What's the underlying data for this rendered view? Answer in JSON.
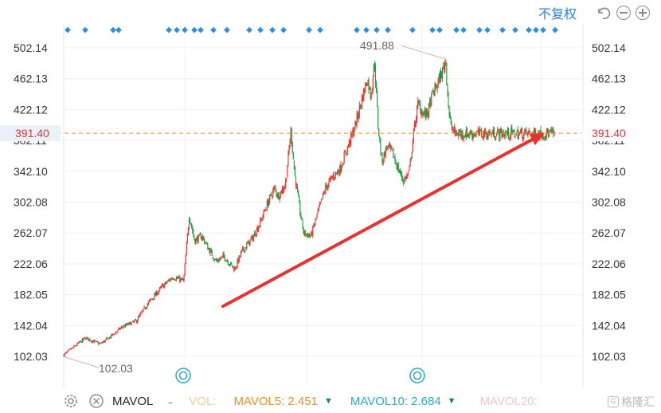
{
  "toolbar": {
    "adjust_label": "不复权",
    "undo_icon": "undo-icon",
    "zoom_out_icon": "zoom-out-icon",
    "zoom_in_icon": "zoom-in-icon"
  },
  "chart_data": {
    "type": "candlestick",
    "y_ticks": [
      "502.14",
      "462.13",
      "422.12",
      "382.11",
      "342.10",
      "302.08",
      "262.07",
      "222.06",
      "182.05",
      "142.04",
      "102.03"
    ],
    "ylim": [
      102.03,
      502.14
    ],
    "current_price": "391.40",
    "high_label": "491.88",
    "low_label": "102.03",
    "up_color": "#e8322e",
    "down_color": "#18a23a",
    "trend_arrow": {
      "from": [
        0.2,
        167
      ],
      "to": [
        0.96,
        392
      ],
      "color": "#e8322e"
    },
    "trajectory": [
      [
        0.0,
        104
      ],
      [
        0.03,
        115
      ],
      [
        0.06,
        126
      ],
      [
        0.1,
        118
      ],
      [
        0.13,
        128
      ],
      [
        0.16,
        140
      ],
      [
        0.2,
        148
      ],
      [
        0.23,
        170
      ],
      [
        0.27,
        192
      ],
      [
        0.3,
        205
      ],
      [
        0.33,
        200
      ],
      [
        0.345,
        285
      ],
      [
        0.36,
        252
      ],
      [
        0.38,
        258
      ],
      [
        0.4,
        240
      ],
      [
        0.42,
        225
      ],
      [
        0.44,
        232
      ],
      [
        0.47,
        215
      ],
      [
        0.49,
        238
      ],
      [
        0.52,
        256
      ],
      [
        0.54,
        275
      ],
      [
        0.56,
        300
      ],
      [
        0.58,
        320
      ],
      [
        0.59,
        310
      ],
      [
        0.61,
        325
      ],
      [
        0.625,
        395
      ],
      [
        0.635,
        340
      ],
      [
        0.65,
        290
      ],
      [
        0.66,
        262
      ],
      [
        0.68,
        258
      ],
      [
        0.7,
        290
      ],
      [
        0.72,
        320
      ],
      [
        0.74,
        335
      ],
      [
        0.76,
        345
      ],
      [
        0.78,
        372
      ],
      [
        0.8,
        398
      ],
      [
        0.82,
        435
      ],
      [
        0.835,
        462
      ],
      [
        0.845,
        440
      ],
      [
        0.855,
        485
      ],
      [
        0.865,
        400
      ],
      [
        0.875,
        355
      ],
      [
        0.89,
        375
      ],
      [
        0.905,
        365
      ],
      [
        0.92,
        345
      ],
      [
        0.935,
        330
      ],
      [
        0.95,
        340
      ],
      [
        0.965,
        400
      ],
      [
        0.975,
        430
      ],
      [
        0.985,
        420
      ],
      [
        0.995,
        415
      ],
      [
        1.0,
        418
      ]
    ],
    "trajectory2": [
      [
        0.0,
        418
      ],
      [
        0.03,
        440
      ],
      [
        0.06,
        450
      ],
      [
        0.09,
        462
      ],
      [
        0.11,
        470
      ],
      [
        0.13,
        480
      ],
      [
        0.14,
        488
      ],
      [
        0.15,
        455
      ],
      [
        0.165,
        420
      ],
      [
        0.18,
        400
      ],
      [
        0.2,
        395
      ],
      [
        0.215,
        391
      ]
    ]
  },
  "bottom": {
    "settings_icon": "settings-icon",
    "close_icon": "close-icon",
    "indicator_name": "MAVOL",
    "vol_label": "VOL:",
    "mavol5_label": "MAVOL5:",
    "mavol5_value": "2.451",
    "mavol10_label": "MAVOL10:",
    "mavol10_value": "2.684",
    "mavol20_label": "MAVOL20:",
    "watermark_text": "格隆汇"
  }
}
